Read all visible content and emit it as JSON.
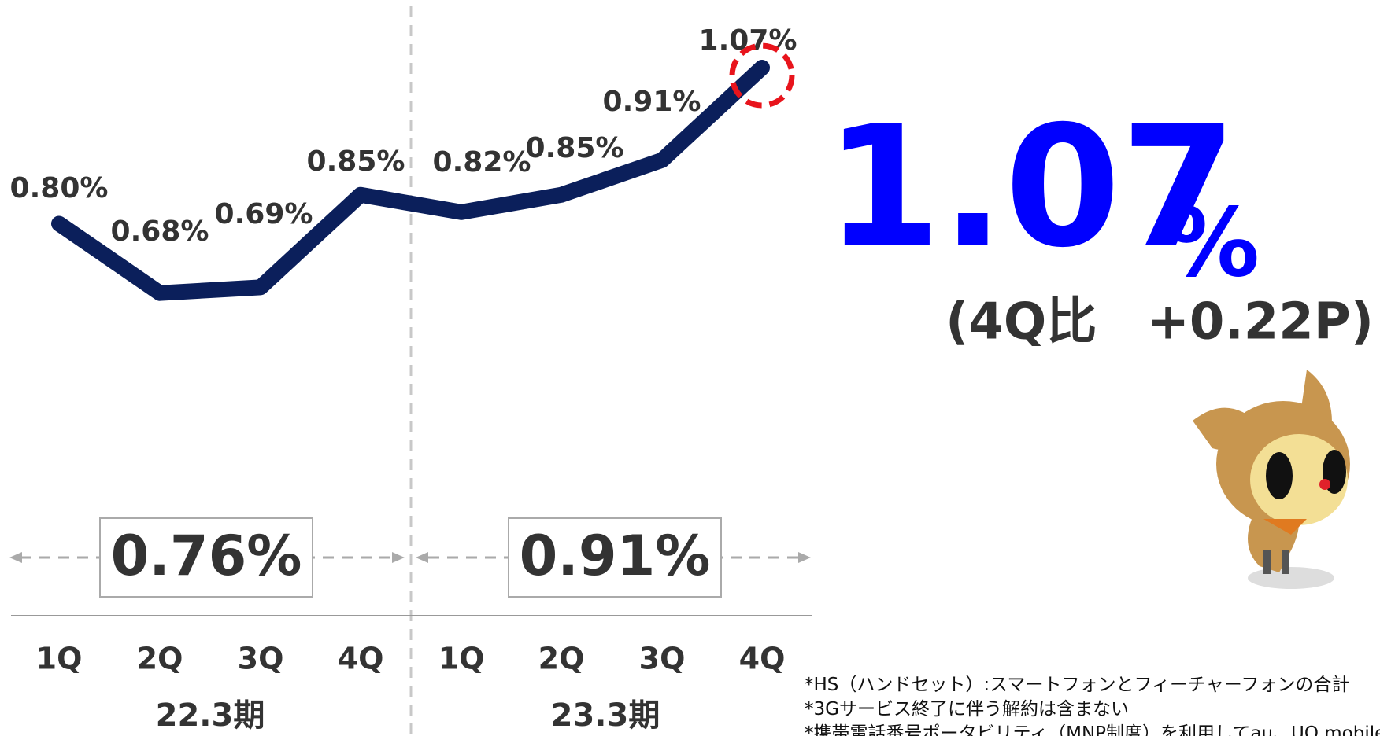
{
  "chart_data": {
    "type": "line",
    "categories": [
      "1Q",
      "2Q",
      "3Q",
      "4Q",
      "1Q",
      "2Q",
      "3Q",
      "4Q"
    ],
    "values": [
      0.8,
      0.68,
      0.69,
      0.85,
      0.82,
      0.85,
      0.91,
      1.07
    ],
    "value_labels": [
      "0.80%",
      "0.68%",
      "0.69%",
      "0.85%",
      "0.82%",
      "0.85%",
      "0.91%",
      "1.07%"
    ],
    "color": "#0b1f5b",
    "ylim": [
      0.5,
      1.1
    ],
    "periods": [
      {
        "label": "22.3期",
        "average": 0.76,
        "average_label": "0.76%"
      },
      {
        "label": "23.3期",
        "average": 0.91,
        "average_label": "0.91%"
      }
    ],
    "highlight": {
      "value": 1.07,
      "unit": "%",
      "change": "(4Q比　+0.22P)"
    },
    "notes": [
      "*HS（ハンドセット）:スマートフォンとフィーチャーフォンの合計",
      "*3Gサービス終了に伴う解約は含まない",
      "*携帯電話番号ポータビリティ（MNP制度）を利用してau、UQ mobile"
    ]
  }
}
